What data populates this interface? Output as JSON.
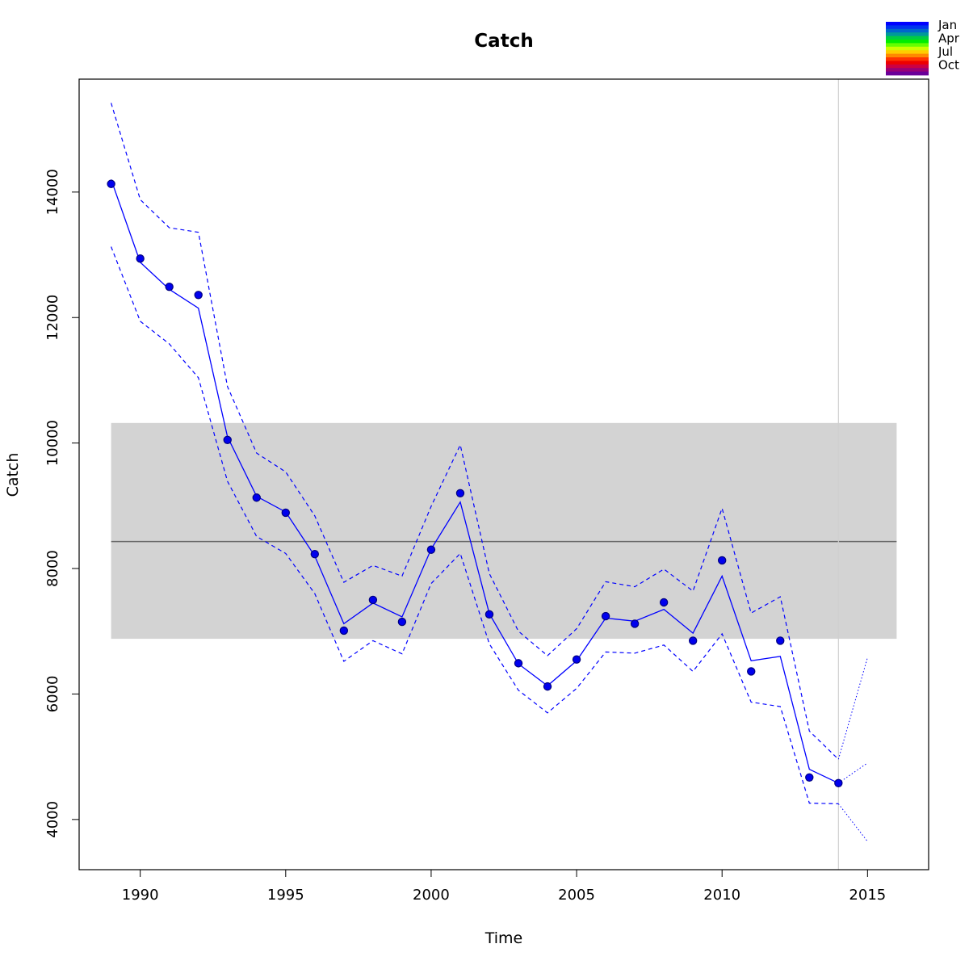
{
  "chart_data": {
    "type": "line",
    "title": "Catch",
    "xlabel": "Time",
    "ylabel": "Catch",
    "xlim": [
      1987.9,
      2017.1
    ],
    "ylim": [
      3200,
      15800
    ],
    "x_ticks": [
      1990,
      1995,
      2000,
      2005,
      2010,
      2015
    ],
    "x_tick_labels": [
      "1990",
      "1995",
      "2000",
      "2005",
      "2010",
      "2015"
    ],
    "y_ticks": [
      4000,
      6000,
      8000,
      10000,
      12000,
      14000
    ],
    "y_tick_labels": [
      "4000",
      "6000",
      "8000",
      "10000",
      "12000",
      "14000"
    ],
    "grid": false,
    "colors": {
      "series": "#0000ff",
      "band": "#d3d3d3",
      "mean_line": "#666666",
      "vline": "#cfcfcf",
      "point_fill": "#0000ee",
      "point_stroke": "#000080"
    },
    "reference_band": {
      "x": [
        1989,
        2016
      ],
      "y": [
        6880,
        10320
      ]
    },
    "reference_line": {
      "x": [
        1989,
        2016
      ],
      "y": 8430
    },
    "vertical_line_x": 2014,
    "observed": {
      "x": [
        1989,
        1990,
        1991,
        1992,
        1993,
        1994,
        1995,
        1996,
        1997,
        1998,
        1999,
        2000,
        2001,
        2002,
        2003,
        2004,
        2005,
        2006,
        2007,
        2008,
        2009,
        2010,
        2011,
        2012,
        2013,
        2014
      ],
      "y": [
        14130,
        12940,
        12490,
        12360,
        10050,
        9130,
        8890,
        8230,
        7010,
        7500,
        7150,
        8300,
        9200,
        7270,
        6490,
        6120,
        6550,
        7240,
        7120,
        7460,
        6850,
        8130,
        6360,
        6850,
        4670,
        4580
      ]
    },
    "fitted": {
      "x": [
        1989,
        1990,
        1991,
        1992,
        1993,
        1994,
        1995,
        1996,
        1997,
        1998,
        1999,
        2000,
        2001,
        2002,
        2003,
        2004,
        2005,
        2006,
        2007,
        2008,
        2009,
        2010,
        2011,
        2012,
        2013,
        2014
      ],
      "y": [
        14200,
        12880,
        12450,
        12150,
        10100,
        9150,
        8900,
        8200,
        7120,
        7450,
        7230,
        8310,
        9060,
        7280,
        6480,
        6130,
        6530,
        7210,
        7160,
        7350,
        6970,
        7880,
        6530,
        6600,
        4800,
        4580
      ]
    },
    "upper": {
      "x": [
        1989,
        1990,
        1991,
        1992,
        1993,
        1994,
        1995,
        1996,
        1997,
        1998,
        1999,
        2000,
        2001,
        2002,
        2003,
        2004,
        2005,
        2006,
        2007,
        2008,
        2009,
        2010,
        2011,
        2012,
        2013,
        2014
      ],
      "y": [
        15420,
        13880,
        13430,
        13360,
        10900,
        9840,
        9540,
        8840,
        7780,
        8050,
        7880,
        8990,
        9970,
        7920,
        7000,
        6610,
        7040,
        7790,
        7710,
        7990,
        7640,
        8960,
        7290,
        7550,
        5410,
        4960
      ]
    },
    "lower": {
      "x": [
        1989,
        1990,
        1991,
        1992,
        1993,
        1994,
        1995,
        1996,
        1997,
        1998,
        1999,
        2000,
        2001,
        2002,
        2003,
        2004,
        2005,
        2006,
        2007,
        2008,
        2009,
        2010,
        2011,
        2012,
        2013,
        2014
      ],
      "y": [
        13130,
        11940,
        11580,
        11040,
        9390,
        8510,
        8240,
        7600,
        6520,
        6850,
        6640,
        7760,
        8240,
        6800,
        6060,
        5700,
        6090,
        6670,
        6650,
        6780,
        6360,
        6960,
        5870,
        5800,
        4260,
        4250
      ]
    },
    "forecast": {
      "x": [
        2014,
        2015
      ],
      "mean": [
        4580,
        4900
      ],
      "upper": [
        4960,
        6580
      ],
      "lower": [
        4250,
        3650
      ]
    },
    "legend": {
      "position": "top-right",
      "labels": [
        "Jan",
        "Apr",
        "Jul",
        "Oct"
      ],
      "colors": [
        "#0000ff",
        "#0033ee",
        "#0066cc",
        "#00999a",
        "#00cc44",
        "#00ee00",
        "#66ff00",
        "#ccff00",
        "#ffcc00",
        "#ff8800",
        "#ff3300",
        "#ee0000",
        "#cc0044",
        "#990077",
        "#6a0099"
      ]
    }
  }
}
